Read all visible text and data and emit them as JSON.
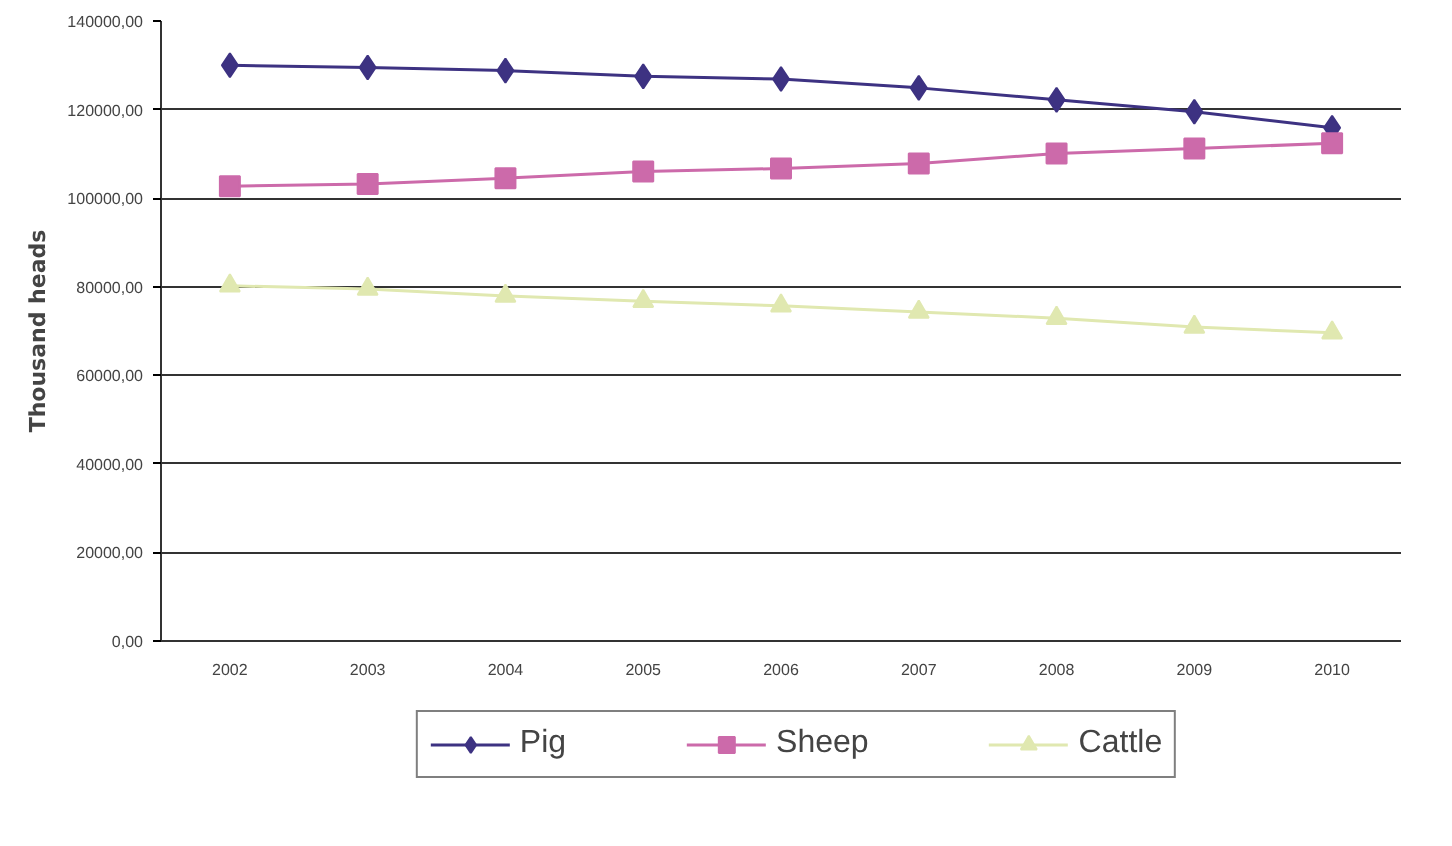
{
  "chart_data": {
    "type": "line",
    "ylabel": "Thousand heads",
    "categories": [
      "2002",
      "2003",
      "2004",
      "2005",
      "2006",
      "2007",
      "2008",
      "2009",
      "2010"
    ],
    "ylim": [
      0,
      140000
    ],
    "yticks": [
      {
        "value": 0,
        "label": "0,00"
      },
      {
        "value": 20000,
        "label": "20000,00"
      },
      {
        "value": 40000,
        "label": "40000,00"
      },
      {
        "value": 60000,
        "label": "60000,00"
      },
      {
        "value": 80000,
        "label": "80000,00"
      },
      {
        "value": 100000,
        "label": "100000,00"
      },
      {
        "value": 120000,
        "label": "120000,00"
      },
      {
        "value": 140000,
        "label": "140000,00"
      }
    ],
    "grid": "y",
    "legend": "bottom",
    "series": [
      {
        "name": "Pig",
        "color": "#3d3282",
        "marker": "diamond",
        "values": [
          130000,
          129500,
          128800,
          127500,
          126900,
          124900,
          122200,
          119500,
          115900
        ]
      },
      {
        "name": "Sheep",
        "color": "#cc6aaa",
        "marker": "square",
        "values": [
          102700,
          103200,
          104500,
          106000,
          106700,
          107800,
          110100,
          111200,
          112400
        ]
      },
      {
        "name": "Cattle",
        "color": "#e0e8b0",
        "marker": "triangle",
        "values": [
          80200,
          79500,
          77900,
          76700,
          75700,
          74300,
          72900,
          70900,
          69600
        ]
      }
    ]
  }
}
